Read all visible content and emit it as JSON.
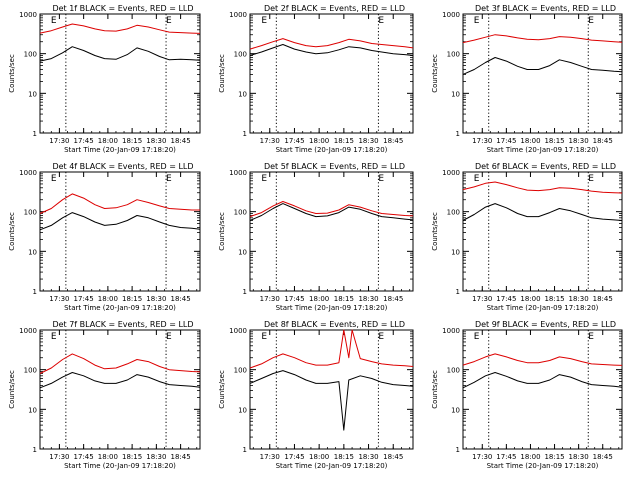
{
  "figure": {
    "ylabel": "Counts/sec",
    "xlabel": "Start Time (20-Jan-09 17:18:20)",
    "corner_marks": [
      "E",
      "E"
    ],
    "colors": {
      "events": "#000000",
      "lld": "#dd0000",
      "axis": "#000000",
      "background": "#ffffff"
    }
  },
  "chart_data": [
    {
      "type": "line",
      "title": "Det 1f BLACK = Events, RED = LLD",
      "ylim": [
        1,
        1000
      ],
      "yscale": "log",
      "yticks": [
        "1",
        "10",
        "100",
        "1000"
      ],
      "xticks": [
        "17:30",
        "17:45",
        "18:00",
        "18:15",
        "18:30",
        "18:45"
      ],
      "x_range": [
        "17:18",
        "18:57"
      ],
      "series": [
        {
          "name": "Events",
          "x": [
            "17:18",
            "17:25",
            "17:32",
            "17:38",
            "17:45",
            "17:52",
            "17:58",
            "18:05",
            "18:12",
            "18:18",
            "18:25",
            "18:32",
            "18:38",
            "18:45",
            "18:52",
            "18:57"
          ],
          "values": [
            65,
            75,
            105,
            150,
            120,
            90,
            75,
            72,
            95,
            140,
            115,
            85,
            70,
            72,
            70,
            68
          ]
        },
        {
          "name": "LLD",
          "x": [
            "17:18",
            "17:25",
            "17:32",
            "17:38",
            "17:45",
            "17:52",
            "17:58",
            "18:05",
            "18:12",
            "18:18",
            "18:25",
            "18:32",
            "18:38",
            "18:45",
            "18:52",
            "18:57"
          ],
          "values": [
            330,
            380,
            470,
            560,
            500,
            420,
            380,
            370,
            420,
            520,
            470,
            400,
            350,
            340,
            330,
            325
          ]
        }
      ]
    },
    {
      "type": "line",
      "title": "Det 2f BLACK = Events, RED = LLD",
      "ylim": [
        1,
        1000
      ],
      "yscale": "log",
      "yticks": [
        "1",
        "10",
        "100",
        "1000"
      ],
      "xticks": [
        "17:30",
        "17:45",
        "18:00",
        "18:15",
        "18:30",
        "18:45"
      ],
      "x_range": [
        "17:18",
        "18:57"
      ],
      "series": [
        {
          "name": "Events",
          "x": [
            "17:18",
            "17:25",
            "17:32",
            "17:38",
            "17:45",
            "17:52",
            "17:58",
            "18:05",
            "18:12",
            "18:18",
            "18:25",
            "18:32",
            "18:38",
            "18:45",
            "18:52",
            "18:57"
          ],
          "values": [
            90,
            110,
            140,
            170,
            130,
            110,
            100,
            105,
            125,
            150,
            140,
            120,
            110,
            100,
            95,
            90
          ]
        },
        {
          "name": "LLD",
          "x": [
            "17:18",
            "17:25",
            "17:32",
            "17:38",
            "17:45",
            "17:52",
            "17:58",
            "18:05",
            "18:12",
            "18:18",
            "18:25",
            "18:32",
            "18:38",
            "18:45",
            "18:52",
            "18:57"
          ],
          "values": [
            130,
            160,
            200,
            240,
            190,
            160,
            150,
            160,
            190,
            230,
            210,
            180,
            170,
            160,
            150,
            140
          ]
        }
      ]
    },
    {
      "type": "line",
      "title": "Det 3f BLACK = Events, RED = LLD",
      "ylim": [
        1,
        1000
      ],
      "yscale": "log",
      "yticks": [
        "1",
        "10",
        "100",
        "1000"
      ],
      "xticks": [
        "17:30",
        "17:45",
        "18:00",
        "18:15",
        "18:30",
        "18:45"
      ],
      "x_range": [
        "17:18",
        "18:57"
      ],
      "series": [
        {
          "name": "Events",
          "x": [
            "17:18",
            "17:25",
            "17:32",
            "17:38",
            "17:45",
            "17:52",
            "17:58",
            "18:05",
            "18:12",
            "18:18",
            "18:25",
            "18:32",
            "18:38",
            "18:45",
            "18:52",
            "18:57"
          ],
          "values": [
            30,
            40,
            60,
            80,
            65,
            48,
            40,
            40,
            50,
            70,
            60,
            48,
            40,
            38,
            36,
            35
          ]
        },
        {
          "name": "LLD",
          "x": [
            "17:18",
            "17:25",
            "17:32",
            "17:38",
            "17:45",
            "17:52",
            "17:58",
            "18:05",
            "18:12",
            "18:18",
            "18:25",
            "18:32",
            "18:38",
            "18:45",
            "18:52",
            "18:57"
          ],
          "values": [
            190,
            220,
            260,
            300,
            280,
            250,
            230,
            225,
            240,
            270,
            260,
            240,
            220,
            210,
            200,
            195
          ]
        }
      ]
    },
    {
      "type": "line",
      "title": "Det 4f BLACK = Events, RED = LLD",
      "ylim": [
        1,
        1000
      ],
      "yscale": "log",
      "yticks": [
        "1",
        "10",
        "100",
        "1000"
      ],
      "xticks": [
        "17:30",
        "17:45",
        "18:00",
        "18:15",
        "18:30",
        "18:45"
      ],
      "x_range": [
        "17:18",
        "18:57"
      ],
      "series": [
        {
          "name": "Events",
          "x": [
            "17:18",
            "17:25",
            "17:32",
            "17:38",
            "17:45",
            "17:52",
            "17:58",
            "18:05",
            "18:12",
            "18:18",
            "18:25",
            "18:32",
            "18:38",
            "18:45",
            "18:52",
            "18:57"
          ],
          "values": [
            35,
            45,
            70,
            95,
            75,
            55,
            45,
            48,
            60,
            80,
            70,
            55,
            45,
            40,
            38,
            36
          ]
        },
        {
          "name": "LLD",
          "x": [
            "17:18",
            "17:25",
            "17:32",
            "17:38",
            "17:45",
            "17:52",
            "17:58",
            "18:05",
            "18:12",
            "18:18",
            "18:25",
            "18:32",
            "18:38",
            "18:45",
            "18:52",
            "18:57"
          ],
          "values": [
            90,
            120,
            200,
            280,
            220,
            150,
            120,
            125,
            150,
            200,
            170,
            140,
            120,
            115,
            110,
            110
          ]
        }
      ]
    },
    {
      "type": "line",
      "title": "Det 5f BLACK = Events, RED = LLD",
      "ylim": [
        1,
        1000
      ],
      "yscale": "log",
      "yticks": [
        "1",
        "10",
        "100",
        "1000"
      ],
      "xticks": [
        "17:30",
        "17:45",
        "18:00",
        "18:15",
        "18:30",
        "18:45"
      ],
      "x_range": [
        "17:18",
        "18:57"
      ],
      "series": [
        {
          "name": "Events",
          "x": [
            "17:18",
            "17:25",
            "17:32",
            "17:38",
            "17:45",
            "17:52",
            "17:58",
            "18:05",
            "18:12",
            "18:18",
            "18:25",
            "18:32",
            "18:38",
            "18:45",
            "18:52",
            "18:57"
          ],
          "values": [
            60,
            80,
            120,
            160,
            120,
            90,
            75,
            78,
            95,
            130,
            115,
            90,
            75,
            70,
            65,
            62
          ]
        },
        {
          "name": "LLD",
          "x": [
            "17:18",
            "17:25",
            "17:32",
            "17:38",
            "17:45",
            "17:52",
            "17:58",
            "18:05",
            "18:12",
            "18:18",
            "18:25",
            "18:32",
            "18:38",
            "18:45",
            "18:52",
            "18:57"
          ],
          "values": [
            75,
            95,
            140,
            180,
            140,
            105,
            90,
            92,
            110,
            150,
            130,
            105,
            90,
            85,
            80,
            78
          ]
        }
      ]
    },
    {
      "type": "line",
      "title": "Det 6f BLACK = Events, RED = LLD",
      "ylim": [
        1,
        1000
      ],
      "yscale": "log",
      "yticks": [
        "1",
        "10",
        "100",
        "1000"
      ],
      "xticks": [
        "17:30",
        "17:45",
        "18:00",
        "18:15",
        "18:30",
        "18:45"
      ],
      "x_range": [
        "17:18",
        "18:57"
      ],
      "series": [
        {
          "name": "Events",
          "x": [
            "17:18",
            "17:25",
            "17:32",
            "17:38",
            "17:45",
            "17:52",
            "17:58",
            "18:05",
            "18:12",
            "18:18",
            "18:25",
            "18:32",
            "18:38",
            "18:45",
            "18:52",
            "18:57"
          ],
          "values": [
            60,
            85,
            130,
            160,
            125,
            90,
            75,
            75,
            95,
            120,
            105,
            85,
            70,
            65,
            62,
            60
          ]
        },
        {
          "name": "LLD",
          "x": [
            "17:18",
            "17:25",
            "17:32",
            "17:38",
            "17:45",
            "17:52",
            "17:58",
            "18:05",
            "18:12",
            "18:18",
            "18:25",
            "18:32",
            "18:38",
            "18:45",
            "18:52",
            "18:57"
          ],
          "values": [
            360,
            420,
            520,
            560,
            480,
            400,
            350,
            340,
            360,
            400,
            390,
            360,
            330,
            310,
            300,
            295
          ]
        }
      ]
    },
    {
      "type": "line",
      "title": "Det 7f BLACK = Events, RED = LLD",
      "ylim": [
        1,
        1000
      ],
      "yscale": "log",
      "yticks": [
        "1",
        "10",
        "100",
        "1000"
      ],
      "xticks": [
        "17:30",
        "17:45",
        "18:00",
        "18:15",
        "18:30",
        "18:45"
      ],
      "x_range": [
        "17:18",
        "18:57"
      ],
      "series": [
        {
          "name": "Events",
          "x": [
            "17:18",
            "17:25",
            "17:32",
            "17:38",
            "17:45",
            "17:52",
            "17:58",
            "18:05",
            "18:12",
            "18:18",
            "18:25",
            "18:32",
            "18:38",
            "18:45",
            "18:52",
            "18:57"
          ],
          "values": [
            35,
            45,
            65,
            85,
            70,
            52,
            45,
            45,
            55,
            75,
            65,
            50,
            42,
            40,
            38,
            36
          ]
        },
        {
          "name": "LLD",
          "x": [
            "17:18",
            "17:25",
            "17:32",
            "17:38",
            "17:45",
            "17:52",
            "17:58",
            "18:05",
            "18:12",
            "18:18",
            "18:25",
            "18:32",
            "18:38",
            "18:45",
            "18:52",
            "18:57"
          ],
          "values": [
            80,
            110,
            180,
            250,
            190,
            130,
            105,
            110,
            140,
            180,
            160,
            120,
            100,
            95,
            90,
            88
          ]
        }
      ]
    },
    {
      "type": "line",
      "title": "Det 8f BLACK = Events, RED = LLD",
      "ylim": [
        1,
        1000
      ],
      "yscale": "log",
      "yticks": [
        "1",
        "10",
        "100",
        "1000"
      ],
      "xticks": [
        "17:30",
        "17:45",
        "18:00",
        "18:15",
        "18:30",
        "18:45"
      ],
      "x_range": [
        "17:18",
        "18:57"
      ],
      "annotations": [
        "LLD spikes near 18:15-18:20; Events dip to ~3 near 18:15"
      ],
      "series": [
        {
          "name": "Events",
          "x": [
            "17:18",
            "17:25",
            "17:32",
            "17:38",
            "17:45",
            "17:52",
            "17:58",
            "18:05",
            "18:12",
            "18:15",
            "18:18",
            "18:25",
            "18:32",
            "18:38",
            "18:45",
            "18:52",
            "18:57"
          ],
          "values": [
            45,
            60,
            80,
            95,
            75,
            55,
            45,
            45,
            50,
            3,
            55,
            70,
            60,
            48,
            42,
            40,
            38
          ]
        },
        {
          "name": "LLD",
          "x": [
            "17:18",
            "17:25",
            "17:32",
            "17:38",
            "17:45",
            "17:52",
            "17:58",
            "18:05",
            "18:12",
            "18:15",
            "18:18",
            "18:20",
            "18:25",
            "18:32",
            "18:38",
            "18:45",
            "18:52",
            "18:57"
          ],
          "values": [
            110,
            140,
            200,
            250,
            200,
            150,
            130,
            130,
            150,
            1000,
            200,
            1000,
            190,
            160,
            140,
            130,
            125,
            120
          ]
        }
      ]
    },
    {
      "type": "line",
      "title": "Det 9f BLACK = Events, RED = LLD",
      "ylim": [
        1,
        1000
      ],
      "yscale": "log",
      "yticks": [
        "1",
        "10",
        "100",
        "1000"
      ],
      "xticks": [
        "17:30",
        "17:45",
        "18:00",
        "18:15",
        "18:30",
        "18:45"
      ],
      "x_range": [
        "17:18",
        "18:57"
      ],
      "series": [
        {
          "name": "Events",
          "x": [
            "17:18",
            "17:25",
            "17:32",
            "17:38",
            "17:45",
            "17:52",
            "17:58",
            "18:05",
            "18:12",
            "18:18",
            "18:25",
            "18:32",
            "18:38",
            "18:45",
            "18:52",
            "18:57"
          ],
          "values": [
            35,
            48,
            70,
            85,
            68,
            52,
            45,
            45,
            55,
            75,
            65,
            50,
            42,
            40,
            38,
            36
          ]
        },
        {
          "name": "LLD",
          "x": [
            "17:18",
            "17:25",
            "17:32",
            "17:38",
            "17:45",
            "17:52",
            "17:58",
            "18:05",
            "18:12",
            "18:18",
            "18:25",
            "18:32",
            "18:38",
            "18:45",
            "18:52",
            "18:57"
          ],
          "values": [
            130,
            160,
            210,
            250,
            210,
            170,
            150,
            150,
            170,
            210,
            190,
            160,
            140,
            135,
            130,
            128
          ]
        }
      ]
    }
  ]
}
